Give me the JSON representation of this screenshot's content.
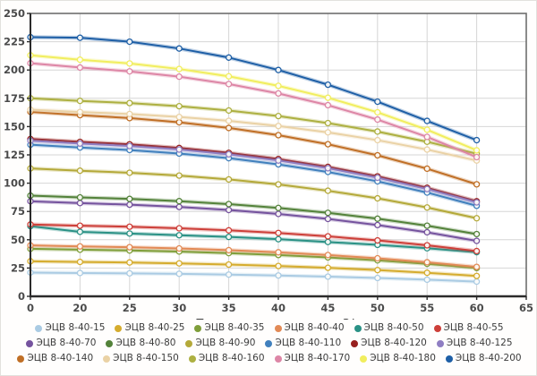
{
  "chart_data": {
    "type": "line",
    "title": "",
    "xlabel": "Производительность, м3/ч",
    "ylabel": "",
    "x_tick_labels": [
      "0",
      "20",
      "25",
      "30",
      "35",
      "40",
      "45",
      "50",
      "55",
      "60",
      "65"
    ],
    "categories": [
      0,
      20,
      25,
      30,
      35,
      40,
      45,
      50,
      55,
      60
    ],
    "ylim": [
      0,
      250
    ],
    "y_ticks": [
      0,
      25,
      50,
      75,
      100,
      125,
      150,
      175,
      200,
      225,
      250
    ],
    "grid": true,
    "legend_position": "bottom",
    "marker": "ring-circle",
    "series": [
      {
        "name": "ЭЦВ 8-40-15",
        "color": "#aacbe3",
        "values": [
          21,
          20.6,
          20.3,
          19.9,
          19.2,
          18.4,
          17.4,
          16.2,
          14.7,
          13
        ]
      },
      {
        "name": "ЭЦВ 8-40-25",
        "color": "#d5ac2e",
        "values": [
          31,
          30.4,
          29.9,
          29.1,
          28.1,
          26.8,
          25.2,
          23.2,
          20.8,
          18
        ]
      },
      {
        "name": "ЭЦВ 8-40-35",
        "color": "#7f9e3a",
        "values": [
          42,
          41.2,
          40.5,
          39.6,
          38.2,
          36.5,
          34.4,
          31.8,
          28.7,
          25
        ]
      },
      {
        "name": "ЭЦВ 8-40-40",
        "color": "#e28a56",
        "values": [
          45,
          44.1,
          43.4,
          42.3,
          40.8,
          38.9,
          36.5,
          33.6,
          30.1,
          26
        ]
      },
      {
        "name": "ЭЦВ 8-40-50",
        "color": "#2a9185",
        "values": [
          62,
          57,
          55.5,
          54,
          52.5,
          50.5,
          48,
          45.5,
          42.5,
          39
        ]
      },
      {
        "name": "ЭЦВ 8-40-55",
        "color": "#cd3f39",
        "values": [
          63.5,
          62.4,
          61.5,
          60.1,
          58.3,
          56,
          53,
          49.4,
          45.1,
          40
        ]
      },
      {
        "name": "ЭЦВ 8-40-70",
        "color": "#75539e",
        "values": [
          84,
          82.4,
          81,
          79,
          76.3,
          72.8,
          68.4,
          63,
          56.6,
          49
        ]
      },
      {
        "name": "ЭЦВ 8-40-80",
        "color": "#53823a",
        "values": [
          89,
          87.4,
          86.1,
          84.1,
          81.5,
          78.1,
          73.8,
          68.6,
          62.4,
          55
        ]
      },
      {
        "name": "ЭЦВ 8-40-90",
        "color": "#b4a939",
        "values": [
          113,
          111,
          109.2,
          106.7,
          103.3,
          98.9,
          93.3,
          86.6,
          78.5,
          69
        ]
      },
      {
        "name": "ЭЦВ 8-40-110",
        "color": "#4180bd",
        "values": [
          134,
          131.5,
          129.3,
          126.2,
          122.1,
          116.6,
          109.9,
          101.6,
          91.7,
          80
        ]
      },
      {
        "name": "ЭЦВ 8-40-120",
        "color": "#97201e",
        "values": [
          139,
          136.5,
          134.3,
          131.1,
          126.8,
          121.3,
          114.4,
          106,
          95.9,
          84
        ]
      },
      {
        "name": "ЭЦВ 8-40-125",
        "color": "#8f7ec2",
        "values": [
          137.5,
          135,
          132.8,
          129.7,
          125.5,
          120,
          113.2,
          104.8,
          94.8,
          83
        ]
      },
      {
        "name": "ЭЦВ 8-40-140",
        "color": "#c06f26",
        "values": [
          163,
          160.1,
          157.5,
          153.8,
          148.8,
          142.4,
          134.4,
          124.6,
          112.8,
          99
        ]
      },
      {
        "name": "ЭЦВ 8-40-150",
        "color": "#ead2a5",
        "values": [
          165,
          162.9,
          161.1,
          158.5,
          155.1,
          150.5,
          144.9,
          138,
          129.7,
          120
        ]
      },
      {
        "name": "ЭЦВ 8-40-160",
        "color": "#adb041",
        "values": [
          175,
          172.7,
          170.8,
          168,
          164.2,
          159.3,
          153.1,
          145.6,
          136.6,
          126
        ]
      },
      {
        "name": "ЭЦВ 8-40-170",
        "color": "#dd86a6",
        "values": [
          206,
          202.2,
          198.8,
          194.1,
          187.6,
          179.3,
          168.9,
          156.2,
          140.9,
          123
        ]
      },
      {
        "name": "ЭЦВ 8-40-180",
        "color": "#f1ee5e",
        "values": [
          213,
          209.1,
          205.8,
          200.9,
          194.4,
          186,
          175.5,
          162.6,
          147.2,
          129
        ]
      },
      {
        "name": "ЭЦВ 8-40-200",
        "color": "#1e5fa6",
        "values": [
          229,
          228.5,
          225,
          219,
          211,
          200,
          187,
          172,
          155,
          138
        ]
      }
    ],
    "style": {
      "grid_color": "#d6d6d6",
      "frame_color": "#6e6e6e",
      "axis_color": "#2b2b2b",
      "tick_label_color": "#4a4a4a",
      "axis_title_color": "#3f3f3f",
      "plot_bg": "#ffffff"
    }
  }
}
